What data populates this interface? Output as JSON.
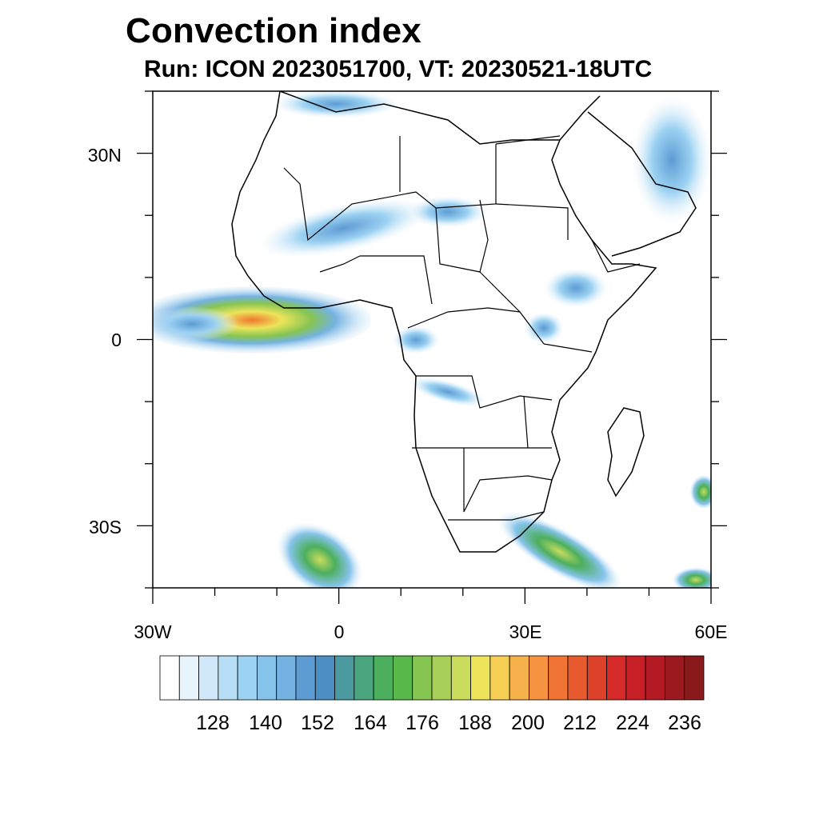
{
  "title": "Convection index",
  "subtitle": "Run: ICON 2023051700,  VT: 20230521-18UTC",
  "map": {
    "lon_range": [
      -30,
      60
    ],
    "lat_range": [
      -40,
      40
    ],
    "lat_ticks": [
      {
        "value": 30,
        "label": "30N"
      },
      {
        "value": 0,
        "label": "0"
      },
      {
        "value": -30,
        "label": "30S"
      }
    ],
    "lon_ticks": [
      {
        "value": -30,
        "label": "30W"
      },
      {
        "value": 0,
        "label": "0"
      },
      {
        "value": 30,
        "label": "30E"
      },
      {
        "value": 60,
        "label": "60E"
      }
    ]
  },
  "colorbar": {
    "colors": [
      "#ffffff",
      "#e8f4fc",
      "#cfe9f8",
      "#b6def5",
      "#9cd2f2",
      "#86c3ea",
      "#74b2e2",
      "#5d9bd3",
      "#4c8fc2",
      "#4a9aa0",
      "#4aa57e",
      "#4caf5e",
      "#58b84a",
      "#86c552",
      "#a8cf57",
      "#cadc5c",
      "#ede45a",
      "#f7cf55",
      "#f6b04c",
      "#f59440",
      "#f07535",
      "#e65a2e",
      "#de4129",
      "#d62a28",
      "#c81e26",
      "#b31a24",
      "#9b1a1f",
      "#881a1c"
    ],
    "labels": [
      "128",
      "140",
      "152",
      "164",
      "176",
      "188",
      "200",
      "212",
      "224",
      "236"
    ]
  }
}
